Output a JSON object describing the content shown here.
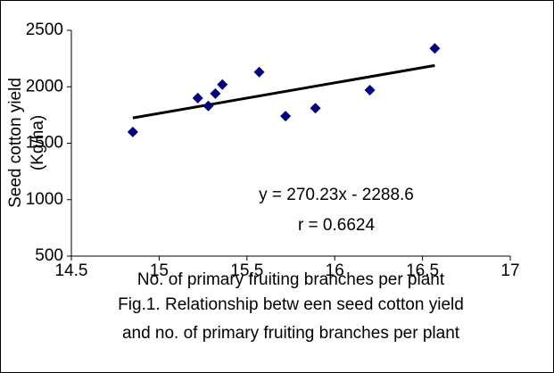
{
  "chart_data": {
    "type": "scatter",
    "x_label": "No. of primary fruiting branches per plant",
    "y_label": [
      "Seed cotton yield",
      "(Kg/ha)"
    ],
    "caption": [
      "Fig.1. Relationship betw een seed cotton yield",
      "and no. of primary fruiting branches per plant"
    ],
    "annotations": [
      "y = 270.23x - 2288.6",
      "r = 0.6624"
    ],
    "series": [
      {
        "color": "#000080",
        "x": [
          14.85,
          15.22,
          15.28,
          15.32,
          15.36,
          15.57,
          15.72,
          15.89,
          16.2,
          16.57
        ],
        "values": [
          1600,
          1900,
          1830,
          1940,
          2020,
          2130,
          1740,
          1810,
          1970,
          2340
        ]
      }
    ],
    "trendline": {
      "color": "#000000",
      "x": [
        14.85,
        16.57
      ],
      "values": [
        1724,
        2189
      ]
    },
    "xlim": [
      14.5,
      17
    ],
    "xticks": [
      14.5,
      15,
      15.5,
      16,
      16.5,
      17
    ],
    "ylim": [
      500,
      2500
    ],
    "yticks": [
      500,
      1000,
      1500,
      2000,
      2500
    ]
  }
}
